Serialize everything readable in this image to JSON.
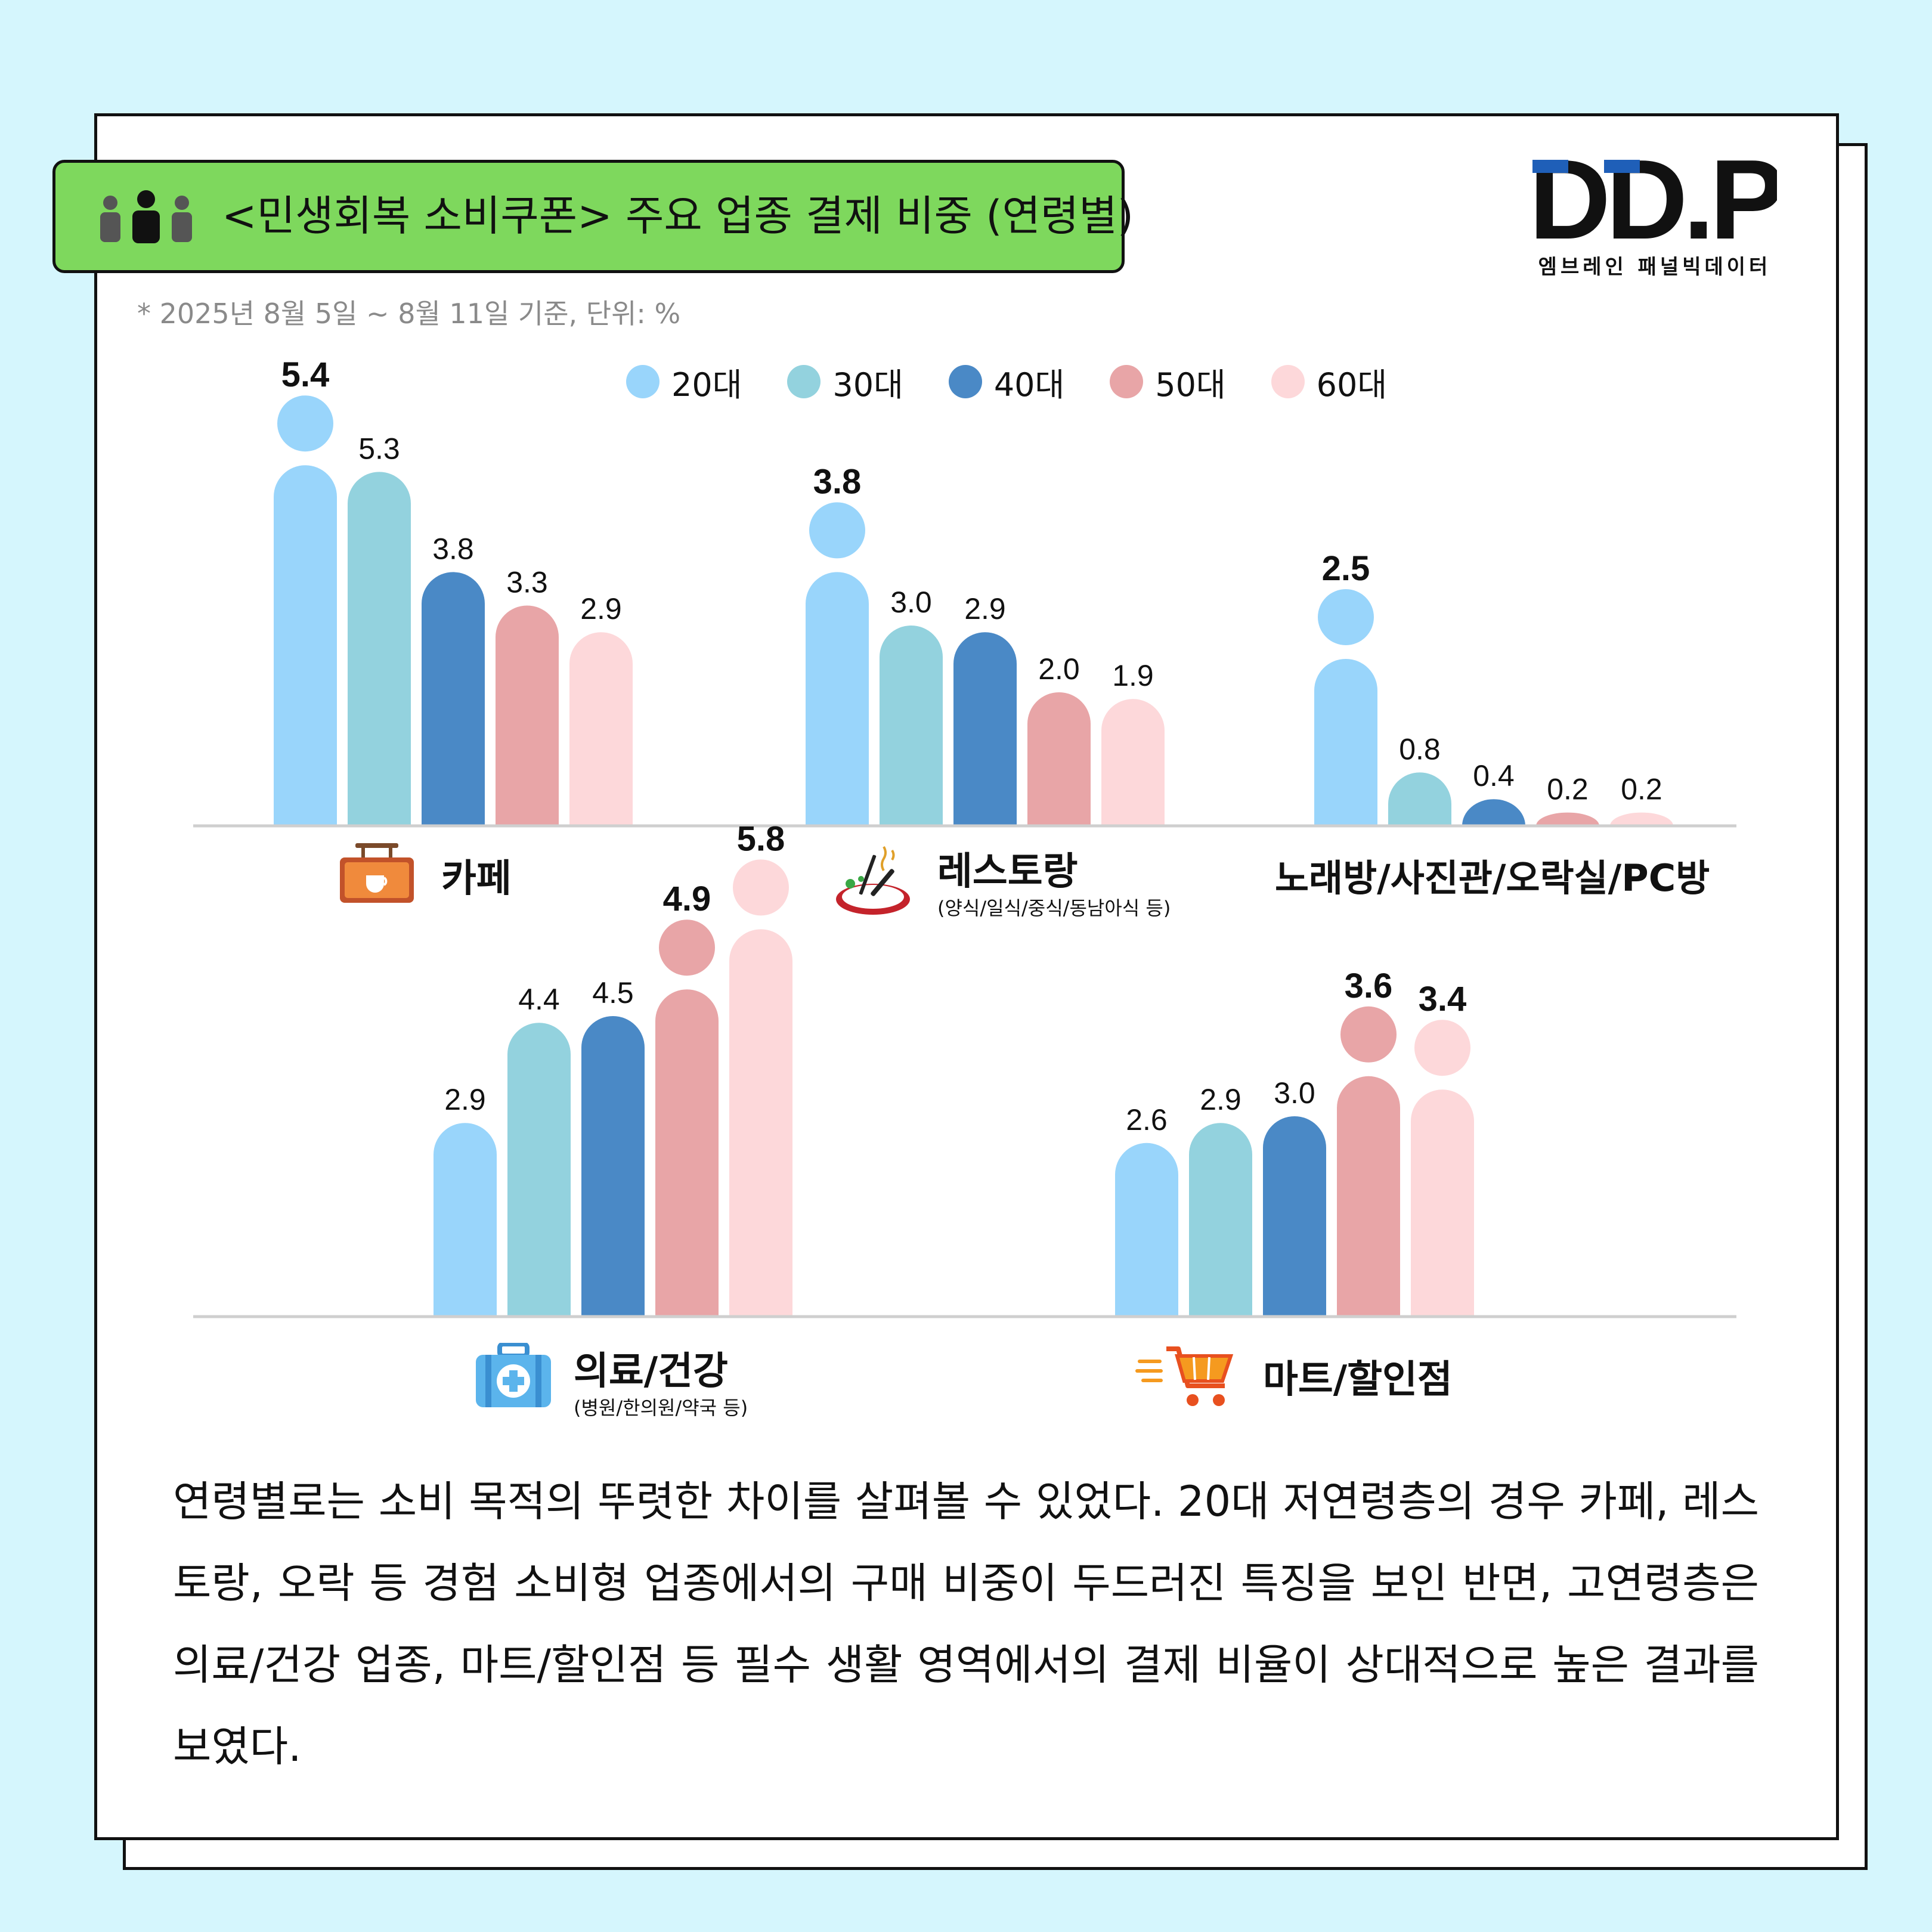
{
  "title": "<민생회복 소비쿠폰> 주요 업종 결제 비중 (연령별)",
  "logo": {
    "text": "DD.P",
    "subtitle": "엠브레인 패널빅데이터"
  },
  "note": "* 2025년 8월 5일 ~ 8월 11일 기준, 단위: %",
  "colors": {
    "20대": "#99d5fb",
    "30대": "#93d2de",
    "40대": "#4a89c6",
    "50대": "#e8a5a7",
    "60대": "#fdd8da",
    "accent_green": "#7ed85d",
    "background": "#d5f6fd"
  },
  "legend": [
    "20대",
    "30대",
    "40대",
    "50대",
    "60대"
  ],
  "categories": {
    "cafe": {
      "label": "카페",
      "icon": "cafe-sign-icon"
    },
    "restaurant": {
      "label": "레스토랑",
      "sub": "(양식/일식/중식/동남아식 등)",
      "icon": "dining-plate-icon"
    },
    "karaoke": {
      "label": "노래방/사진관/오락실/PC방"
    },
    "medical": {
      "label": "의료/건강",
      "sub": "(병원/한의원/약국 등)",
      "icon": "first-aid-kit-icon"
    },
    "mart": {
      "label": "마트/할인점",
      "icon": "shopping-cart-icon"
    }
  },
  "chart_data": [
    {
      "type": "bar",
      "categories": [
        "카페",
        "레스토랑",
        "노래방/사진관/오락실/PC방"
      ],
      "series": [
        {
          "name": "20대",
          "values": [
            5.4,
            3.8,
            2.5
          ]
        },
        {
          "name": "30대",
          "values": [
            5.3,
            3.0,
            0.8
          ]
        },
        {
          "name": "40대",
          "values": [
            3.8,
            2.9,
            0.4
          ]
        },
        {
          "name": "50대",
          "values": [
            3.3,
            2.0,
            0.2
          ]
        },
        {
          "name": "60대",
          "values": [
            2.9,
            1.9,
            0.2
          ]
        }
      ],
      "value_labels": [
        [
          "5.4",
          "5.3",
          "3.8",
          "3.3",
          "2.9"
        ],
        [
          "3.8",
          "3.0",
          "2.9",
          "2.0",
          "1.9"
        ],
        [
          "2.5",
          "0.8",
          "0.4",
          "0.2",
          "0.2"
        ]
      ],
      "highlight": [
        [
          0
        ],
        [
          0
        ],
        [
          0
        ]
      ]
    },
    {
      "type": "bar",
      "categories": [
        "의료/건강",
        "마트/할인점"
      ],
      "series": [
        {
          "name": "20대",
          "values": [
            2.9,
            2.6
          ]
        },
        {
          "name": "30대",
          "values": [
            4.4,
            2.9
          ]
        },
        {
          "name": "40대",
          "values": [
            4.5,
            3.0
          ]
        },
        {
          "name": "50대",
          "values": [
            4.9,
            3.6
          ]
        },
        {
          "name": "60대",
          "values": [
            5.8,
            3.4
          ]
        }
      ],
      "value_labels": [
        [
          "2.9",
          "4.4",
          "4.5",
          "4.9",
          "5.8"
        ],
        [
          "2.6",
          "2.9",
          "3.0",
          "3.6",
          "3.4"
        ]
      ],
      "highlight": [
        [
          3,
          4
        ],
        [
          3,
          4
        ]
      ]
    }
  ],
  "paragraph": "연령별로는 소비 목적의 뚜렷한 차이를 살펴볼 수 있었다. 20대 저연령층의 경우 카페, 레스토랑, 오락 등 경험 소비형 업종에서의 구매 비중이 두드러진 특징을 보인 반면, 고연령층은 의료/건강 업종, 마트/할인점 등 필수 생활 영역에서의 결제 비율이 상대적으로 높은 결과를 보였다."
}
